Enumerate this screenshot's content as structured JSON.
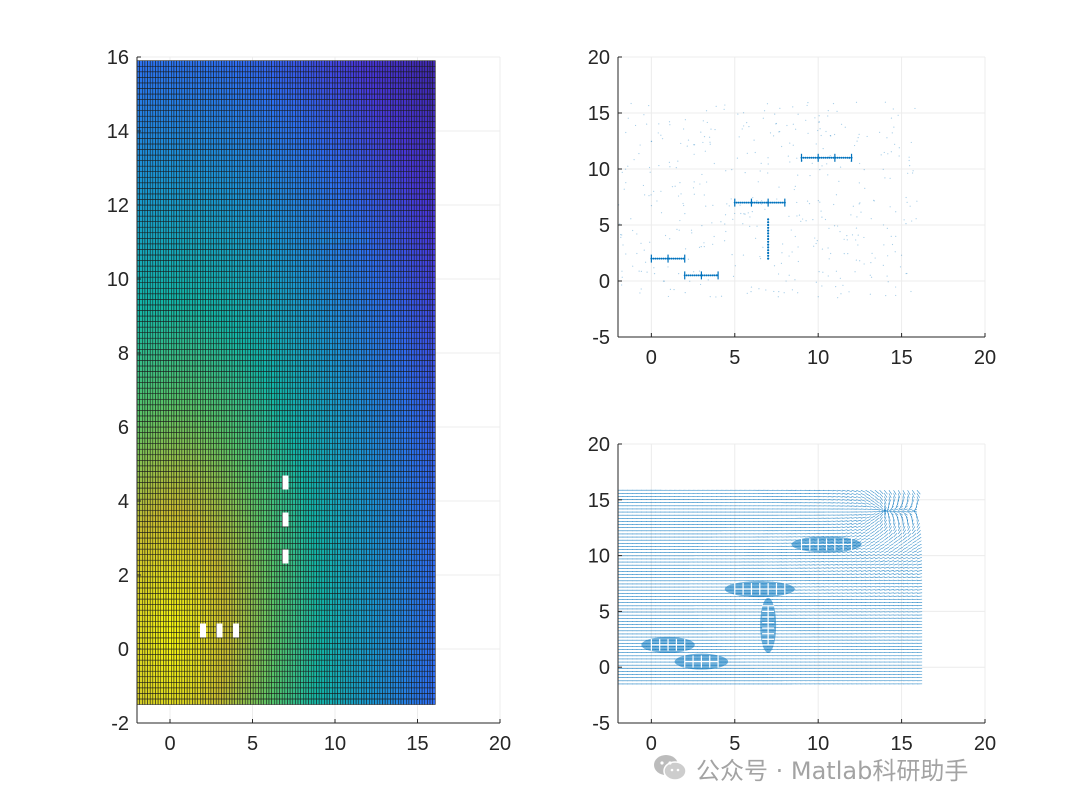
{
  "chart_data": [
    {
      "type": "heatmap",
      "title": "",
      "xlabel": "",
      "ylabel": "",
      "xlim": [
        -2,
        20
      ],
      "ylim": [
        -2,
        16
      ],
      "xticks": [
        "0",
        "5",
        "10",
        "15",
        "20"
      ],
      "yticks": [
        "-2",
        "0",
        "2",
        "4",
        "6",
        "8",
        "10",
        "12",
        "14",
        "16"
      ],
      "grid": true,
      "colormap": "parula",
      "extent": {
        "x": [
          -2,
          16
        ],
        "y": [
          -1.5,
          15.9
        ]
      },
      "mesh_spacing": {
        "dx": 0.16,
        "dy": 0.15
      },
      "obstacles": [
        {
          "x": 2,
          "y": 0.5
        },
        {
          "x": 3,
          "y": 0.5
        },
        {
          "x": 4,
          "y": 0.5
        },
        {
          "x": 7,
          "y": 2.5
        },
        {
          "x": 7,
          "y": 3.5
        },
        {
          "x": 7,
          "y": 4.5
        }
      ],
      "faint_feature": {
        "x": [
          9,
          12
        ],
        "y": 11.1
      }
    },
    {
      "type": "scatter",
      "title": "",
      "xlabel": "",
      "ylabel": "",
      "xlim": [
        -2,
        20
      ],
      "ylim": [
        -5,
        20
      ],
      "xticks": [
        "0",
        "5",
        "10",
        "15",
        "20"
      ],
      "yticks": [
        "-5",
        "0",
        "5",
        "10",
        "15",
        "20"
      ],
      "grid": true,
      "color": "#0072BD",
      "clusters": [
        {
          "x": [
            0,
            2
          ],
          "y": 2
        },
        {
          "x": [
            2,
            4
          ],
          "y": 0.5
        },
        {
          "x": [
            5,
            8
          ],
          "y": 7
        },
        {
          "x": [
            7,
            7
          ],
          "y": [
            2,
            5.5
          ]
        },
        {
          "x": [
            9,
            12
          ],
          "y": 11
        }
      ]
    },
    {
      "type": "quiver",
      "title": "",
      "xlabel": "",
      "ylabel": "",
      "xlim": [
        -2,
        20
      ],
      "ylim": [
        -5,
        20
      ],
      "xticks": [
        "0",
        "5",
        "10",
        "15",
        "20"
      ],
      "yticks": [
        "-5",
        "0",
        "5",
        "10",
        "15",
        "20"
      ],
      "grid": true,
      "color": "#0072BD",
      "field_extent": {
        "x": [
          -2,
          16
        ],
        "y": [
          -1.5,
          16
        ]
      },
      "convergence_point": {
        "x": 14,
        "y": 14
      },
      "clusters": [
        {
          "x": [
            0,
            2
          ],
          "y": 2
        },
        {
          "x": [
            2,
            4
          ],
          "y": 0.5
        },
        {
          "x": [
            5,
            8
          ],
          "y": 7
        },
        {
          "x": [
            7,
            7
          ],
          "y": [
            2,
            5.5
          ]
        },
        {
          "x": [
            9,
            12
          ],
          "y": 11
        }
      ]
    }
  ],
  "watermark": {
    "text": "公众号 · Matlab科研助手",
    "icon": "wechat-icon"
  }
}
